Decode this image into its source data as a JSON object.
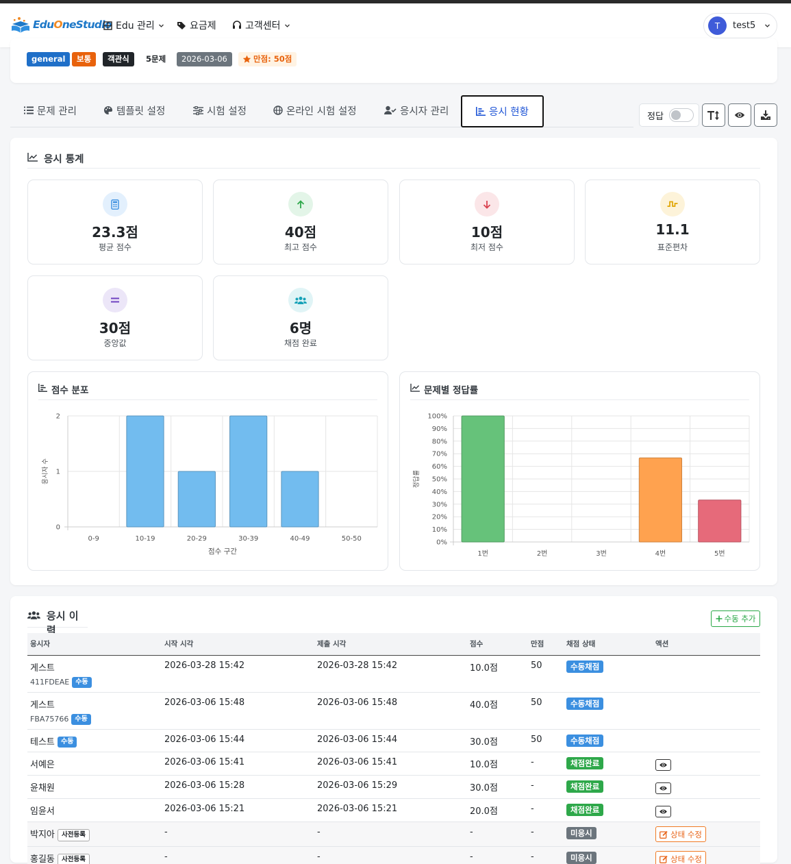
{
  "colors": {
    "brand": "#1d78c8",
    "primary": "#1f55d6",
    "success": "#2ea84a",
    "warning": "#ff9f43",
    "danger": "#e05563",
    "info": "#3b8fe0"
  },
  "nav": {
    "brand": "EduOneStudio",
    "edu_manage": "Edu 관리",
    "pricing": "요금제",
    "support": "고객센터",
    "user_initial": "T",
    "user_name": "test5"
  },
  "exam_info": {
    "tags": {
      "category": "general",
      "difficulty": "보통",
      "type": "객관식",
      "count": "5문제",
      "date": "2026-03-06",
      "full_score": "만점: 50점"
    }
  },
  "tabs": [
    {
      "label": "문제 관리",
      "icon": "list-icon"
    },
    {
      "label": "템플릿 설정",
      "icon": "palette-icon"
    },
    {
      "label": "시험 설정",
      "icon": "sliders-icon"
    },
    {
      "label": "온라인 시험 설정",
      "icon": "globe-icon"
    },
    {
      "label": "응시자 관리",
      "icon": "user-check-icon"
    },
    {
      "label": "응시 현황",
      "icon": "bar-chart-icon",
      "active": true
    }
  ],
  "toolbar": {
    "answer_toggle_label": "정답",
    "answer_toggle_on": false
  },
  "stats": {
    "title": "응시 통계",
    "items": [
      {
        "value": "23.3점",
        "label": "평균 점수",
        "icon": "calculator-icon"
      },
      {
        "value": "40점",
        "label": "최고 점수",
        "icon": "arrow-up-icon"
      },
      {
        "value": "10점",
        "label": "최저 점수",
        "icon": "arrow-down-icon"
      },
      {
        "value": "11.1",
        "label": "표준편차",
        "icon": "wave-icon"
      },
      {
        "value": "30점",
        "label": "중앙값",
        "icon": "equals-icon"
      },
      {
        "value": "6명",
        "label": "채점 완료",
        "icon": "users-icon"
      }
    ]
  },
  "chart_data": [
    {
      "type": "bar",
      "title": "점수 분포",
      "xlabel": "점수 구간",
      "ylabel": "응시자 수",
      "categories": [
        "0-9",
        "10-19",
        "20-29",
        "30-39",
        "40-49",
        "50-50"
      ],
      "values": [
        0,
        2,
        1,
        2,
        1,
        0
      ],
      "ylim": [
        0,
        2
      ],
      "yticks": [
        "0",
        "1",
        "2"
      ],
      "color": "#72bcef",
      "grid": true
    },
    {
      "type": "bar",
      "title": "문제별 정답률",
      "xlabel": "",
      "ylabel": "정답률",
      "categories": [
        "1번",
        "2번",
        "3번",
        "4번",
        "5번"
      ],
      "values": [
        100,
        0,
        0,
        66.7,
        33.3
      ],
      "ylim": [
        0,
        100
      ],
      "yticks": [
        "0%",
        "10%",
        "20%",
        "30%",
        "40%",
        "50%",
        "60%",
        "70%",
        "80%",
        "90%",
        "100%"
      ],
      "colors": [
        "#66c27a",
        "#66c27a",
        "#66c27a",
        "#ffa24f",
        "#e66a7a"
      ],
      "grid": true
    }
  ],
  "history": {
    "title": "응시 이력",
    "add_button": "수동 추가",
    "columns": [
      "응시자",
      "시작 시각",
      "제출 시각",
      "점수",
      "만점",
      "채점 상태",
      "액션"
    ],
    "rows": [
      {
        "name": "게스트",
        "code": "411FDEAE",
        "badge": "수동",
        "start": "2026-03-28 15:42",
        "submit": "2026-03-28 15:42",
        "score": "10.0점",
        "full": "50",
        "status": "수동채점",
        "action": ""
      },
      {
        "name": "게스트",
        "code": "FBA75766",
        "badge": "수동",
        "start": "2026-03-06 15:48",
        "submit": "2026-03-06 15:48",
        "score": "40.0점",
        "full": "50",
        "status": "수동채점",
        "action": ""
      },
      {
        "name": "테스트",
        "code": "",
        "badge": "수동",
        "start": "2026-03-06 15:44",
        "submit": "2026-03-06 15:44",
        "score": "30.0점",
        "full": "50",
        "status": "수동채점",
        "action": ""
      },
      {
        "name": "서예은",
        "code": "",
        "badge": "",
        "start": "2026-03-06 15:41",
        "submit": "2026-03-06 15:41",
        "score": "10.0점",
        "full": "-",
        "status": "채점완료",
        "action": "view"
      },
      {
        "name": "윤채원",
        "code": "",
        "badge": "",
        "start": "2026-03-06 15:28",
        "submit": "2026-03-06 15:29",
        "score": "30.0점",
        "full": "-",
        "status": "채점완료",
        "action": "view"
      },
      {
        "name": "임윤서",
        "code": "",
        "badge": "",
        "start": "2026-03-06 15:21",
        "submit": "2026-03-06 15:21",
        "score": "20.0점",
        "full": "-",
        "status": "채점완료",
        "action": "view"
      },
      {
        "name": "박지아",
        "code": "",
        "badge": "사전등록",
        "start": "-",
        "submit": "-",
        "score": "-",
        "full": "-",
        "status": "미응시",
        "action": "상태 수정"
      },
      {
        "name": "홍길동",
        "code": "",
        "badge": "사전등록",
        "start": "-",
        "submit": "-",
        "score": "-",
        "full": "-",
        "status": "미응시",
        "action": "상태 수정"
      }
    ]
  }
}
